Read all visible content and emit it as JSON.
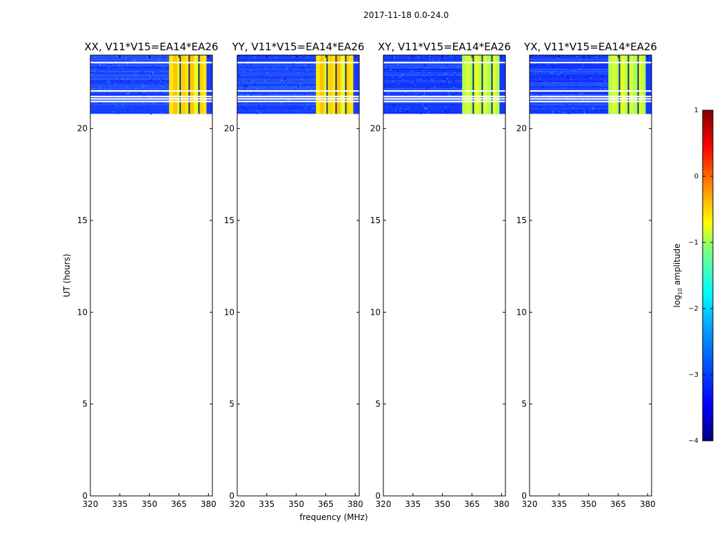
{
  "suptitle": "2017-11-18 0.0-24.0",
  "xlabel": "frequency (MHz)",
  "ylabel": "UT (hours)",
  "chart_data": {
    "type": "heatmap",
    "x_range": [
      320,
      382
    ],
    "y_range": [
      0,
      24
    ],
    "x_ticks": [
      320,
      335,
      350,
      365,
      380
    ],
    "y_ticks": [
      0,
      5,
      10,
      15,
      20
    ],
    "data_extent_hours": [
      20.8,
      24.0
    ],
    "gap_rows_hours": [
      23.6,
      22.05,
      21.75,
      21.62,
      21.48
    ],
    "rfi_bands_mhz": [
      [
        360,
        379
      ]
    ],
    "colorbar": {
      "label_prefix": "log",
      "label_sub": "10",
      "label_suffix": " amplitude",
      "range": [
        -4,
        1
      ],
      "ticks": [
        "1",
        "0",
        "−1",
        "−2",
        "−3",
        "−4"
      ],
      "tick_values": [
        1,
        0,
        -1,
        -2,
        -3,
        -4
      ],
      "colors": [
        "#00007f",
        "#0000ff",
        "#007fff",
        "#00ffff",
        "#7fff7f",
        "#ffff00",
        "#ff7f00",
        "#ff0000",
        "#7f0000"
      ]
    },
    "panels": [
      {
        "title": "XX, V11*V15=EA14*EA26",
        "cross": false
      },
      {
        "title": "YY, V11*V15=EA14*EA26",
        "cross": false
      },
      {
        "title": "XY, V11*V15=EA14*EA26",
        "cross": true
      },
      {
        "title": "YX, V11*V15=EA14*EA26",
        "cross": true
      }
    ]
  }
}
